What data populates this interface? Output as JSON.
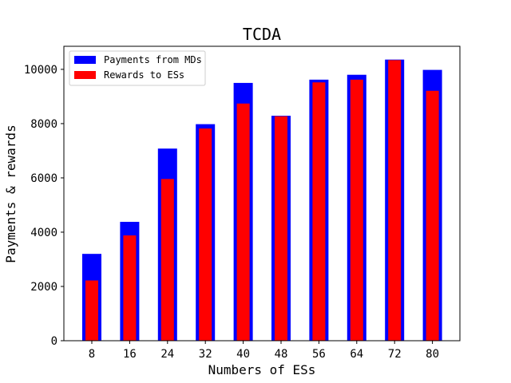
{
  "chart_data": {
    "type": "bar",
    "title": "TCDA",
    "xlabel": "Numbers of ESs",
    "ylabel": "Payments & rewards",
    "categories": [
      "8",
      "16",
      "24",
      "32",
      "40",
      "48",
      "56",
      "64",
      "72",
      "80"
    ],
    "ylim": [
      0,
      10850
    ],
    "yticks": [
      0,
      2000,
      4000,
      6000,
      8000,
      10000
    ],
    "grid": false,
    "legend_position": "top-left",
    "series": [
      {
        "name": "Payments from MDs",
        "color": "#0000ff",
        "values": [
          3200,
          4380,
          7080,
          7980,
          9500,
          8290,
          9620,
          9800,
          10360,
          9980
        ]
      },
      {
        "name": "Rewards to ESs",
        "color": "#ff0000",
        "values": [
          2220,
          3880,
          5960,
          7820,
          8740,
          8270,
          9520,
          9620,
          10340,
          9210
        ]
      }
    ]
  }
}
